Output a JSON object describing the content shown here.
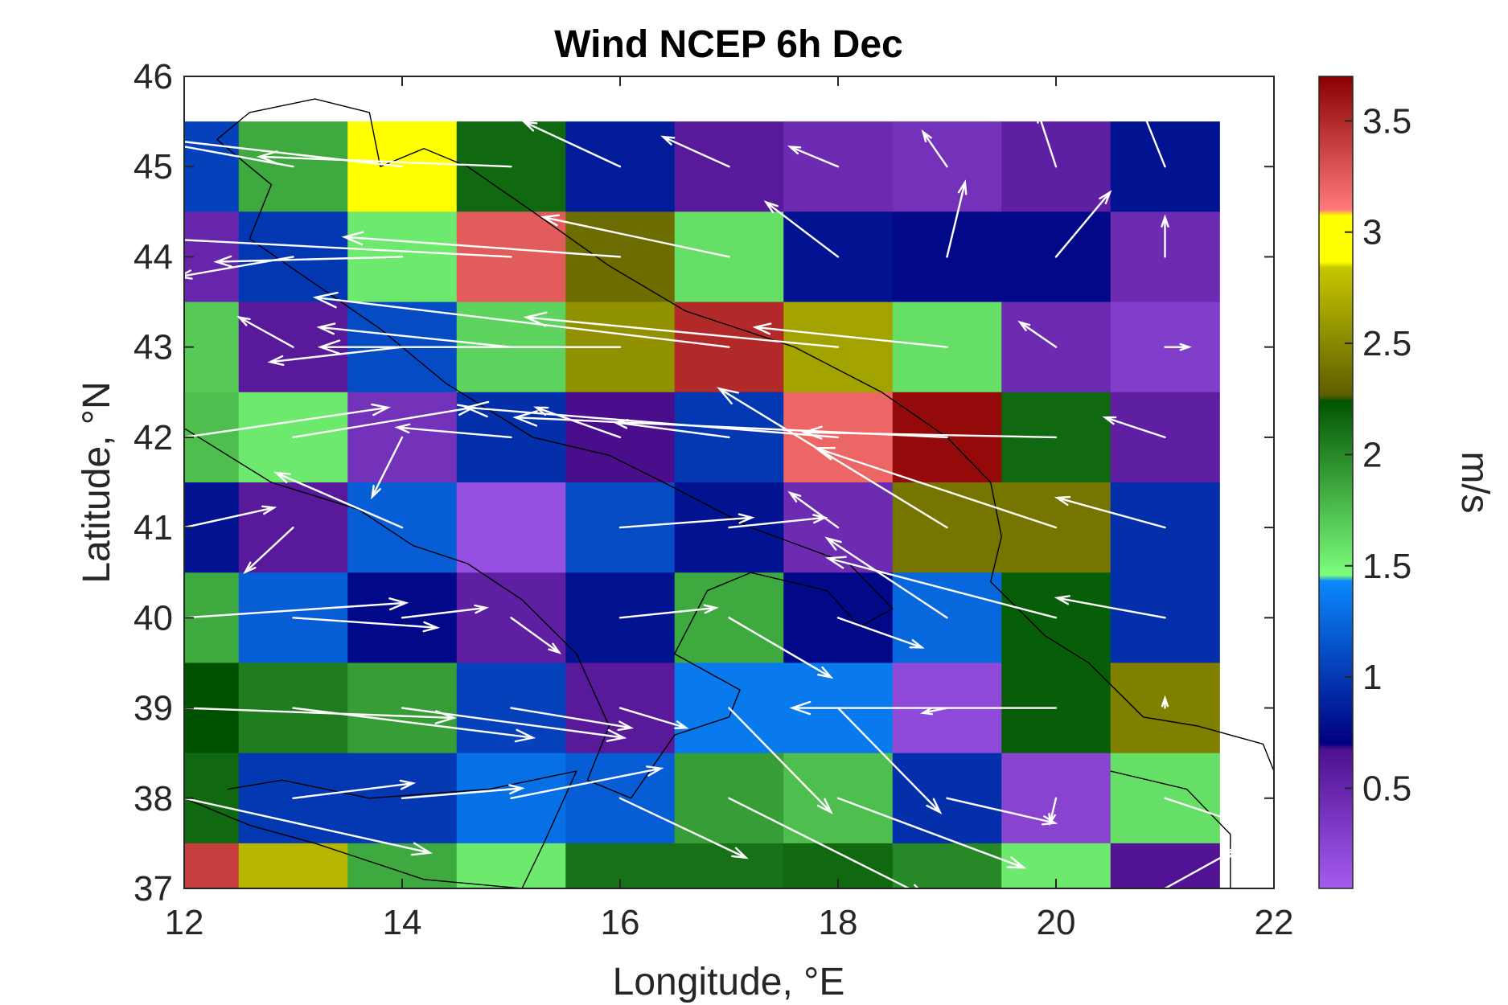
{
  "chart_data": {
    "type": "heatmap",
    "title": "Wind NCEP 6h Dec",
    "xlabel": "Longitude, °E",
    "ylabel": "Latitude, °N",
    "xlim": [
      12,
      22
    ],
    "ylim": [
      37,
      46
    ],
    "xticks": [
      12,
      14,
      16,
      18,
      20,
      22
    ],
    "yticks": [
      37,
      38,
      39,
      40,
      41,
      42,
      43,
      44,
      45,
      46
    ],
    "colorbar": {
      "label": "m/s",
      "range": [
        0.05,
        3.7
      ],
      "ticks": [
        0.5,
        1,
        1.5,
        2,
        2.5,
        3,
        3.5
      ],
      "segments": [
        {
          "from": 0.05,
          "to": 0.7,
          "colors": [
            "#a45cf0",
            "#4a0d8c"
          ]
        },
        {
          "from": 0.7,
          "to": 1.45,
          "colors": [
            "#000080",
            "#0a8cff"
          ]
        },
        {
          "from": 1.45,
          "to": 2.25,
          "colors": [
            "#7dff7d",
            "#005200"
          ]
        },
        {
          "from": 2.25,
          "to": 2.85,
          "colors": [
            "#5a5a00",
            "#c8c800"
          ]
        },
        {
          "from": 2.85,
          "to": 3.1,
          "colors": [
            "#ffff00",
            "#ffff00"
          ]
        },
        {
          "from": 3.1,
          "to": 3.7,
          "colors": [
            "#ff7a7a",
            "#8a0000"
          ]
        }
      ]
    },
    "grid_lon": [
      12,
      13,
      14,
      15,
      16,
      17,
      18,
      19,
      20,
      21
    ],
    "grid_lat": [
      45,
      44,
      43,
      42,
      41,
      40,
      39,
      38,
      37
    ],
    "speed": [
      [
        1.05,
        1.85,
        2.95,
        2.15,
        0.85,
        0.6,
        0.45,
        0.4,
        0.55,
        0.8
      ],
      [
        0.5,
        1.0,
        1.55,
        3.25,
        2.35,
        1.6,
        0.8,
        0.75,
        0.75,
        0.45
      ],
      [
        1.7,
        0.6,
        1.1,
        1.65,
        2.55,
        3.5,
        2.65,
        1.6,
        0.45,
        0.3
      ],
      [
        1.75,
        1.55,
        0.4,
        0.95,
        0.7,
        1.0,
        3.2,
        3.65,
        2.15,
        0.55
      ],
      [
        0.8,
        0.6,
        1.2,
        0.15,
        1.1,
        0.8,
        0.45,
        2.4,
        2.4,
        0.95
      ],
      [
        1.85,
        1.2,
        0.75,
        0.55,
        0.8,
        1.85,
        0.75,
        1.25,
        2.2,
        0.95
      ],
      [
        2.25,
        2.05,
        1.9,
        1.05,
        0.6,
        1.35,
        1.35,
        0.2,
        2.2,
        2.45
      ],
      [
        2.15,
        1.0,
        1.0,
        1.3,
        1.2,
        1.9,
        1.75,
        0.95,
        0.25,
        1.6
      ],
      [
        3.4,
        2.75,
        1.85,
        1.55,
        2.1,
        2.1,
        2.15,
        2.0,
        1.55,
        0.65
      ]
    ],
    "u": [
      [
        -0.6,
        -1.8,
        -2.9,
        -2.1,
        -0.8,
        -0.55,
        -0.4,
        -0.2,
        -0.15,
        -0.25
      ],
      [
        -0.15,
        -0.95,
        -1.55,
        -3.2,
        -2.3,
        -1.55,
        -0.6,
        0.15,
        0.45,
        0.0
      ],
      [
        -0.6,
        -0.45,
        -1.1,
        -1.6,
        -2.5,
        -3.45,
        -2.6,
        -1.6,
        -0.3,
        0.2
      ],
      [
        1.7,
        1.5,
        -0.25,
        -0.95,
        -0.7,
        -0.95,
        -3.1,
        -3.6,
        -2.1,
        -0.5
      ],
      [
        0.75,
        -0.4,
        -1.05,
        0.0,
        1.1,
        0.8,
        -0.4,
        -1.9,
        -2.0,
        -0.9
      ],
      [
        1.85,
        1.2,
        0.7,
        0.4,
        0.8,
        0.85,
        0.7,
        -1.0,
        -1.9,
        -0.9
      ],
      [
        2.25,
        2.0,
        1.85,
        1.0,
        0.55,
        0.85,
        0.85,
        -0.2,
        -2.2,
        0.0
      ],
      [
        2.05,
        1.0,
        1.0,
        1.25,
        1.05,
        1.65,
        1.55,
        0.9,
        -0.05,
        1.0
      ],
      [
        0.0,
        0.0,
        0.0,
        0.0,
        0.0,
        0.0,
        0.0,
        0.0,
        0.0,
        0.6
      ]
    ],
    "v": [
      [
        -0.8,
        0.4,
        0.4,
        0.1,
        0.45,
        0.3,
        0.2,
        0.35,
        0.55,
        0.75
      ],
      [
        -0.8,
        -0.2,
        -0.05,
        0.2,
        0.2,
        0.4,
        0.55,
        0.75,
        0.65,
        0.4
      ],
      [
        1.35,
        0.3,
        -0.15,
        0.2,
        0.0,
        0.5,
        0.3,
        0.2,
        0.25,
        0.0
      ],
      [
        0.3,
        0.3,
        -0.6,
        0.1,
        0.3,
        0.15,
        0.3,
        0.2,
        0.05,
        0.2
      ],
      [
        0.2,
        -0.45,
        0.55,
        0.0,
        0.1,
        0.1,
        0.35,
        1.4,
        0.8,
        0.3
      ],
      [
        0.15,
        -0.1,
        0.1,
        -0.35,
        0.1,
        -0.6,
        -0.3,
        0.8,
        0.6,
        0.2
      ],
      [
        -0.1,
        -0.3,
        -0.3,
        -0.2,
        -0.2,
        -1.05,
        -1.05,
        -0.05,
        0.0,
        0.1
      ],
      [
        -0.55,
        0.15,
        0.1,
        0.3,
        -0.6,
        -1.0,
        -0.7,
        -0.25,
        -0.25,
        -0.4
      ],
      [
        0.0,
        0.0,
        0.0,
        0.0,
        0.0,
        0.0,
        0.0,
        0.0,
        0.0,
        0.4
      ]
    ]
  },
  "colors": {
    "arrow": "#ffffff",
    "coastline": "#000000",
    "axis": "#262626",
    "background": "#ffffff"
  }
}
